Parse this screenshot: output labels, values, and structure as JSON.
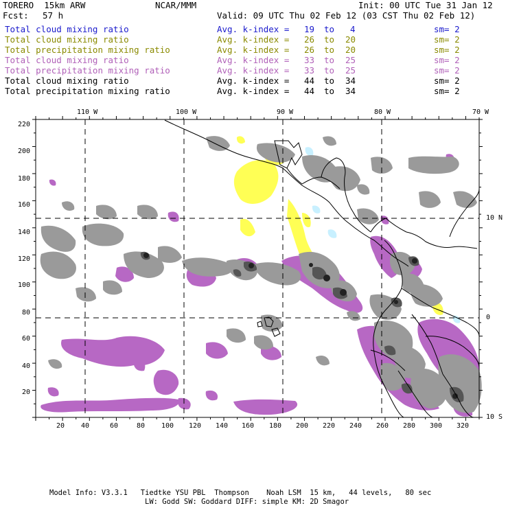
{
  "header": {
    "model": "TORERO  15km ARW",
    "center": "NCAR/MMM",
    "init": "Init: 00 UTC Tue 31 Jan 12",
    "fcst_label": "Fcst:",
    "fcst_value": "57 h",
    "valid": "Valid: 09 UTC Thu 02 Feb 12 (03 CST Thu 02 Feb 12)"
  },
  "legend": [
    {
      "field": "Total cloud mixing ratio",
      "kindex": "Avg. k-index =",
      "from": "19",
      "to_word": "to",
      "to": "4",
      "sm": "sm= 2",
      "color": "#1a1acc"
    },
    {
      "field": "Total cloud mixing ratio",
      "kindex": "Avg. k-index =",
      "from": "26",
      "to_word": "to",
      "to": "20",
      "sm": "sm= 2",
      "color": "#8a8a00"
    },
    {
      "field": "Total precipitation mixing ratio",
      "kindex": "Avg. k-index =",
      "from": "26",
      "to_word": "to",
      "to": "20",
      "sm": "sm= 2",
      "color": "#8a8a00"
    },
    {
      "field": "Total cloud mixing ratio",
      "kindex": "Avg. k-index =",
      "from": "33",
      "to_word": "to",
      "to": "25",
      "sm": "sm= 2",
      "color": "#b060b8"
    },
    {
      "field": "Total precipitation mixing ratio",
      "kindex": "Avg. k-index =",
      "from": "33",
      "to_word": "to",
      "to": "25",
      "sm": "sm= 2",
      "color": "#b060b8"
    },
    {
      "field": "Total cloud mixing ratio",
      "kindex": "Avg. k-index =",
      "from": "44",
      "to_word": "to",
      "to": "34",
      "sm": "sm= 2",
      "color": "#000000"
    },
    {
      "field": "Total precipitation mixing ratio",
      "kindex": "Avg. k-index =",
      "from": "44",
      "to_word": "to",
      "to": "34",
      "sm": "sm= 2",
      "color": "#000000"
    }
  ],
  "map": {
    "lon_labels": [
      "110 W",
      "100 W",
      "90 W",
      "80 W",
      "70 W"
    ],
    "lat_labels": [
      "10 N",
      "0",
      "10 S"
    ],
    "y_ticks": [
      "220",
      "200",
      "180",
      "160",
      "140",
      "120",
      "100",
      "80",
      "60",
      "40",
      "20"
    ],
    "x_ticks": [
      "20",
      "40",
      "60",
      "80",
      "100",
      "120",
      "140",
      "160",
      "180",
      "200",
      "220",
      "240",
      "260",
      "280",
      "300",
      "320"
    ],
    "colors": {
      "cloud_light": "#ffff55",
      "cloud_blue": "#c8f0ff",
      "purple": "#b768c4",
      "gray": "#9a9a9a",
      "dark": "#555555",
      "darkest": "#222222"
    }
  },
  "footer": {
    "line1": "Model Info: V3.3.1   Tiedtke YSU PBL  Thompson    Noah LSM  15 km,   44 levels,   80 sec",
    "line2": "LW: Godd SW: Goddard DIFF: simple KM: 2D Smagor"
  }
}
